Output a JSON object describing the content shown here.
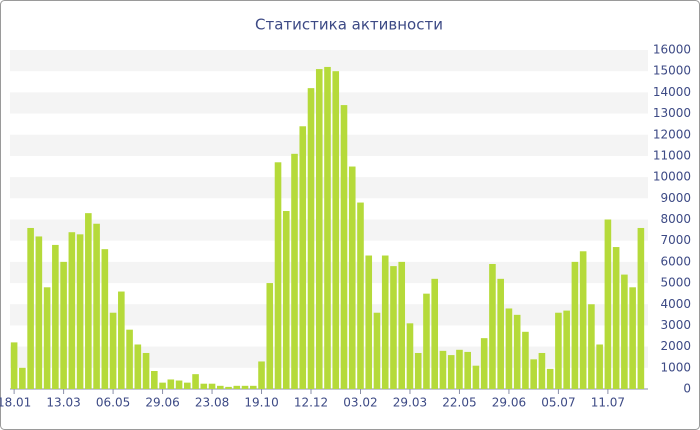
{
  "chart_data": {
    "type": "bar",
    "title": "Статистика активности",
    "categories": [
      "18.01",
      null,
      null,
      null,
      null,
      null,
      "13.03",
      null,
      null,
      null,
      null,
      null,
      "06.05",
      null,
      null,
      null,
      null,
      null,
      "29.06",
      null,
      null,
      null,
      null,
      null,
      "23.08",
      null,
      null,
      null,
      null,
      null,
      "19.10",
      null,
      null,
      null,
      null,
      null,
      "12.12",
      null,
      null,
      null,
      null,
      null,
      "03.02",
      null,
      null,
      null,
      null,
      null,
      "29.03",
      null,
      null,
      null,
      null,
      null,
      "22.05",
      null,
      null,
      null,
      null,
      null,
      "29.06",
      null,
      null,
      null,
      null,
      null,
      "05.07",
      null,
      null,
      null,
      null,
      null,
      "11.07",
      null,
      null,
      null,
      null
    ],
    "values": [
      2200,
      1000,
      7600,
      7200,
      4800,
      6800,
      6000,
      7400,
      7300,
      8300,
      7800,
      6600,
      3600,
      4600,
      2800,
      2100,
      1700,
      850,
      300,
      450,
      400,
      300,
      700,
      250,
      250,
      150,
      100,
      150,
      150,
      150,
      1300,
      5000,
      10700,
      8400,
      11100,
      12400,
      14200,
      15100,
      15200,
      15000,
      13400,
      10500,
      8800,
      6300,
      3600,
      6300,
      5800,
      6000,
      3100,
      1700,
      4500,
      5200,
      1800,
      1600,
      1850,
      1750,
      1100,
      2400,
      5900,
      5200,
      3800,
      3500,
      2700,
      1400,
      1700,
      950,
      3600,
      3700,
      6000,
      6500,
      4000,
      2100,
      8000,
      6700,
      5400,
      4800,
      7600
    ],
    "color": "#b5da3a",
    "ylim": [
      0,
      16000
    ],
    "yticks": [
      0,
      1000,
      2000,
      3000,
      4000,
      5000,
      6000,
      7000,
      8000,
      9000,
      10000,
      11000,
      12000,
      13000,
      14000,
      15000,
      16000
    ],
    "grid": true
  }
}
